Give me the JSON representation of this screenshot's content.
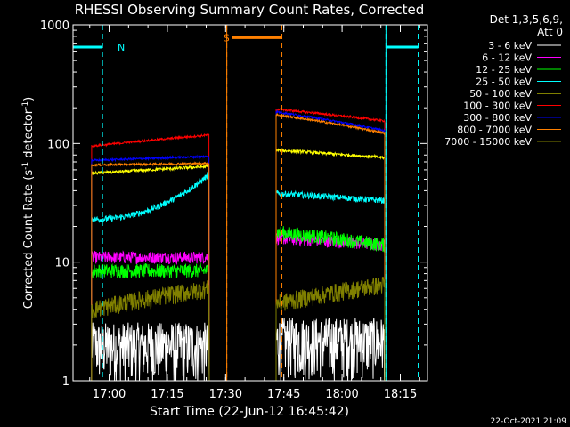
{
  "chart_data": {
    "type": "line",
    "title": "RHESSI Observing Summary Count Rates, Corrected",
    "xlabel": "Start Time (22-Jun-12 16:45:42)",
    "ylabel_main": "Corrected Count Rate (s",
    "ylabel_sup1": "-1",
    "ylabel_mid": " detector",
    "ylabel_sup2": "-1",
    "ylabel_end": ")",
    "yscale": "log",
    "ylim": [
      1,
      1000
    ],
    "xlim_min_after_1645": [
      5.7,
      97
    ],
    "x_ticks": [
      {
        "label": "17:00",
        "min": 15
      },
      {
        "label": "17:15",
        "min": 30
      },
      {
        "label": "17:30",
        "min": 45
      },
      {
        "label": "17:45",
        "min": 60
      },
      {
        "label": "18:00",
        "min": 75
      },
      {
        "label": "18:15",
        "min": 90
      }
    ],
    "y_ticks": [
      {
        "label": "1000",
        "value": 1000
      },
      {
        "label": "100",
        "value": 100
      },
      {
        "label": "10",
        "value": 10
      },
      {
        "label": "1",
        "value": 1
      }
    ],
    "legend_header": [
      "Det 1,3,5,6,9,",
      "Att 0"
    ],
    "series": [
      {
        "name": "3 - 6 keV",
        "color": "#ffffff",
        "seg1": [
          2.0,
          2.0
        ],
        "seg2": [
          2.2,
          2.2
        ],
        "noise": 0.55
      },
      {
        "name": "6 - 12 keV",
        "color": "#ff00ff",
        "seg1": [
          11.0,
          11.0
        ],
        "seg2": [
          16.0,
          14.0
        ],
        "noise": 0.12
      },
      {
        "name": "12 - 25 keV",
        "color": "#00ff00",
        "seg1": [
          8.5,
          8.5
        ],
        "seg2": [
          18.0,
          14.0
        ],
        "noise": 0.14
      },
      {
        "name": "25 - 50 keV",
        "color": "#00ffff",
        "seg1": [
          23.0,
          55.0
        ],
        "seg2": [
          38.0,
          33.0
        ],
        "noise": 0.06
      },
      {
        "name": "50 - 100 keV",
        "color": "#ffff00",
        "seg1": [
          56.0,
          64.0
        ],
        "seg2": [
          88.0,
          76.0
        ],
        "noise": 0.03
      },
      {
        "name": "100 - 300 keV",
        "color": "#ff0000",
        "seg1": [
          95.0,
          118.0
        ],
        "seg2": [
          195.0,
          155.0
        ],
        "noise": 0.02
      },
      {
        "name": "300 - 800 keV",
        "color": "#0000ff",
        "seg1": [
          72.0,
          78.0
        ],
        "seg2": [
          185.0,
          128.0
        ],
        "noise": 0.02
      },
      {
        "name": "800 - 7000 keV",
        "color": "#ff8000",
        "seg1": [
          66.0,
          68.0
        ],
        "seg2": [
          175.0,
          122.0
        ],
        "noise": 0.02
      },
      {
        "name": "7000 - 15000 keV",
        "color": "#808000",
        "seg1": [
          4.0,
          6.0
        ],
        "seg2": [
          4.5,
          6.5
        ],
        "noise": 0.18
      }
    ],
    "data_segments_min": [
      [
        10.5,
        40.8
      ],
      [
        58.0,
        86.0
      ]
    ],
    "annotations": [
      {
        "label": "N",
        "color": "#00ffff",
        "bar": [
          5.7,
          13.3
        ],
        "value": 650,
        "lines": [
          13.3
        ]
      },
      {
        "label": "S",
        "color": "#ff8000",
        "bar": [
          46.7,
          59.5
        ],
        "value": 780,
        "lines": [
          45.3,
          59.5
        ]
      },
      {
        "label": "",
        "color": "#00ffff",
        "bar": [
          86.3,
          94.6
        ],
        "value": 650,
        "lines": [
          86.3,
          94.6
        ]
      }
    ],
    "footer": "22-Oct-2021 21:09"
  }
}
